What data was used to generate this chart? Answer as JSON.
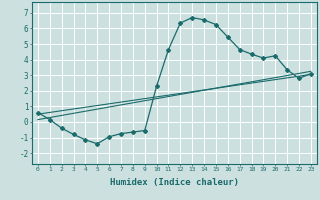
{
  "xlabel": "Humidex (Indice chaleur)",
  "ylabel": "",
  "xlim": [
    -0.5,
    23.5
  ],
  "ylim": [
    -2.7,
    7.7
  ],
  "xticks": [
    0,
    1,
    2,
    3,
    4,
    5,
    6,
    7,
    8,
    9,
    10,
    11,
    12,
    13,
    14,
    15,
    16,
    17,
    18,
    19,
    20,
    21,
    22,
    23
  ],
  "yticks": [
    -2,
    -1,
    0,
    1,
    2,
    3,
    4,
    5,
    6,
    7
  ],
  "bg_color": "#cde0e0",
  "line_color": "#1a6b6b",
  "grid_color": "#ffffff",
  "curve1_x": [
    0,
    1,
    2,
    3,
    4,
    5,
    6,
    7,
    8,
    9,
    10,
    11,
    12,
    13,
    14,
    15,
    16,
    17,
    18,
    19,
    20,
    21,
    22,
    23
  ],
  "curve1_y": [
    0.6,
    0.15,
    -0.4,
    -0.8,
    -1.15,
    -1.4,
    -0.95,
    -0.75,
    -0.65,
    -0.55,
    2.3,
    4.65,
    6.35,
    6.7,
    6.55,
    6.25,
    5.45,
    4.65,
    4.35,
    4.1,
    4.25,
    3.35,
    2.8,
    3.1
  ],
  "line2_x": [
    0,
    23
  ],
  "line2_y": [
    0.5,
    3.05
  ],
  "line3_x": [
    0,
    23
  ],
  "line3_y": [
    0.15,
    3.25
  ]
}
